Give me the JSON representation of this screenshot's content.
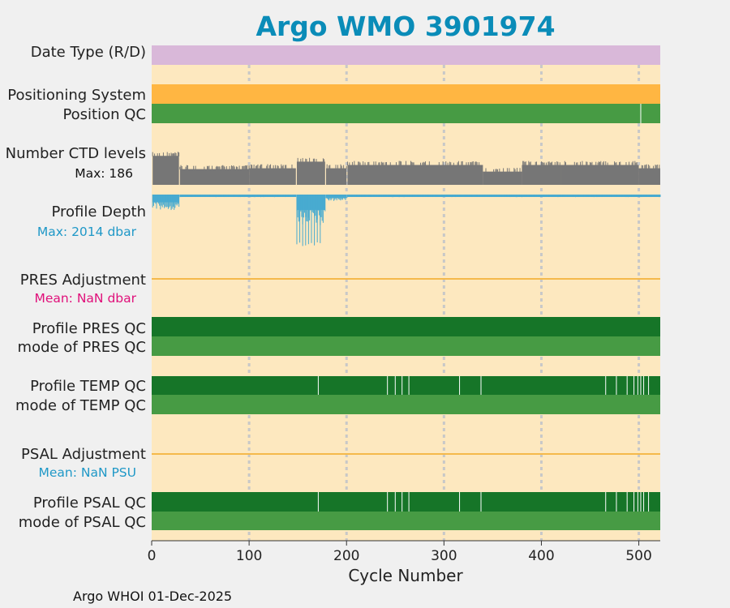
{
  "title": "Argo WMO 3901974",
  "footer": "Argo WHOI 01-Dec-2025",
  "chart_data": {
    "type": "bar",
    "title": "Argo WMO 3901974",
    "xlabel": "Cycle Number",
    "xlim": [
      0,
      522
    ],
    "xticks": [
      0,
      100,
      200,
      300,
      400,
      500
    ],
    "xtick_labels": [
      "0",
      "100",
      "200",
      "300",
      "400",
      "500"
    ],
    "grid_x": [
      100,
      200,
      300,
      400,
      500
    ],
    "colors": {
      "background": "#fde8bf",
      "figure": "#f0f0f0",
      "date_type": "#d9b8d9",
      "positioning": "#ffb642",
      "qc_dark": "#167528",
      "qc_light": "#479b44",
      "ctd": "#767676",
      "depth": "#48abd0",
      "adjustment_line": "#f5b94b",
      "grid": "#c8c8c8",
      "title": "#0a8cb8",
      "pres_mean": "#e0107a",
      "psal_mean": "#1f98c7"
    },
    "rows": {
      "date_type": "Date Type (R/D)",
      "positioning": "Positioning System",
      "position_qc": "Position QC",
      "ctd_levels": "Number CTD levels",
      "ctd_max": "Max: 186",
      "profile_depth": "Profile Depth",
      "depth_max": "Max: 2014 dbar",
      "pres_adj": "PRES Adjustment",
      "pres_mean": "Mean:  NaN dbar",
      "pres_qc": "Profile PRES QC",
      "pres_mode": "mode of PRES QC",
      "temp_qc": "Profile TEMP QC",
      "temp_mode": "mode of TEMP QC",
      "psal_adj": "PSAL Adjustment",
      "psal_mean": "Mean:  NaN PSU",
      "psal_qc": "Profile PSAL QC",
      "psal_mode": "mode of PSAL QC"
    },
    "ctd_levels": {
      "max": 186,
      "segments": [
        {
          "from": 1,
          "to": 28,
          "level": 175
        },
        {
          "from": 29,
          "to": 100,
          "level": 95
        },
        {
          "from": 100,
          "to": 148,
          "level": 100
        },
        {
          "from": 149,
          "to": 178,
          "level": 140
        },
        {
          "from": 179,
          "to": 200,
          "level": 100
        },
        {
          "from": 201,
          "to": 340,
          "level": 120
        },
        {
          "from": 340,
          "to": 380,
          "level": 80
        },
        {
          "from": 380,
          "to": 420,
          "level": 120
        },
        {
          "from": 420,
          "to": 500,
          "level": 120
        },
        {
          "from": 500,
          "to": 522,
          "level": 100
        }
      ]
    },
    "profile_depth": {
      "max_dbar": 2014,
      "segments": [
        {
          "from": 1,
          "to": 28,
          "dbar": 600
        },
        {
          "from": 29,
          "to": 148,
          "dbar": 100
        },
        {
          "from": 149,
          "to": 178,
          "dbar": 1200
        },
        {
          "from": 179,
          "to": 200,
          "dbar": 250
        },
        {
          "from": 201,
          "to": 522,
          "dbar": 100
        }
      ],
      "deep_cycles": {
        "from": 149,
        "to": 175,
        "dbar": 2014
      }
    },
    "qc_flag_cycles": {
      "temp": [
        171,
        242,
        250,
        257,
        264,
        316,
        338,
        466,
        477,
        488,
        495,
        499,
        502,
        505,
        510
      ],
      "psal": [
        171,
        242,
        250,
        257,
        264,
        316,
        338,
        466,
        477,
        488,
        495,
        499,
        502,
        505,
        510
      ]
    },
    "position_qc_mark": 502
  }
}
